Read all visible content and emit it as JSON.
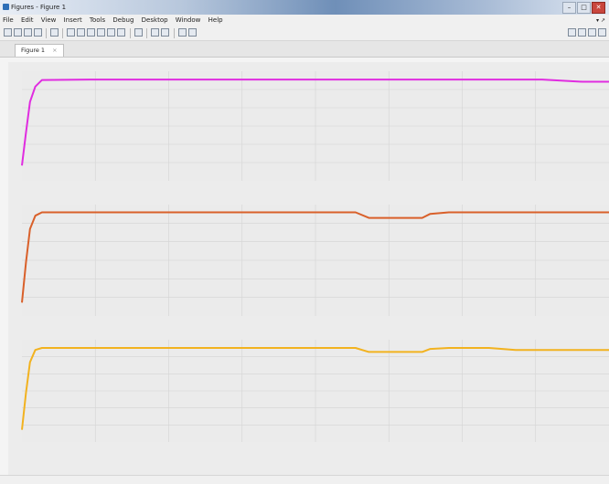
{
  "window": {
    "title": "Figures - Figure 1",
    "buttons": {
      "minimize": "–",
      "maximize": "□",
      "close": "✕"
    }
  },
  "menu": {
    "items": [
      "File",
      "Edit",
      "View",
      "Insert",
      "Tools",
      "Debug",
      "Desktop",
      "Window",
      "Help"
    ],
    "tail": "▾ ↗"
  },
  "toolbar": {
    "icons": [
      "new-figure-icon",
      "open-icon",
      "save-icon",
      "print-icon",
      "pointer-icon",
      "zoom-in-icon",
      "zoom-out-icon",
      "pan-icon",
      "rotate-icon",
      "data-cursor-icon",
      "brush-icon",
      "link-icon",
      "colorbar-icon",
      "legend-icon",
      "hide-plot-tools-icon",
      "show-plot-tools-icon"
    ],
    "layout_icons": [
      "tile-icon",
      "left-right-icon",
      "top-bottom-icon",
      "float-icon"
    ]
  },
  "tabs": [
    {
      "label": "Figure 1",
      "close": "×"
    }
  ],
  "colors": {
    "magenta": "#e02ce0",
    "orange": "#d9602a",
    "yellow": "#f2b21f"
  },
  "chart_data": [
    {
      "type": "line",
      "series": [
        {
          "color": "#e02ce0"
        }
      ],
      "x": [
        0,
        0.03,
        0.06,
        0.1,
        0.15,
        0.5,
        1,
        2,
        3,
        3.5,
        3.9,
        4.2,
        4.4
      ],
      "y": [
        0.7,
        2.2,
        3.6,
        4.3,
        4.6,
        4.62,
        4.62,
        4.62,
        4.62,
        4.62,
        4.62,
        4.52,
        4.52
      ],
      "xlim": [
        0,
        4.4
      ],
      "ylim": [
        0,
        5
      ],
      "grid": true
    },
    {
      "type": "line",
      "series": [
        {
          "color": "#d9602a"
        }
      ],
      "x": [
        0,
        0.03,
        0.06,
        0.1,
        0.15,
        0.5,
        1,
        2,
        2.5,
        2.6,
        3,
        3.06,
        3.2,
        4,
        4.4
      ],
      "y": [
        0.6,
        2.4,
        3.9,
        4.5,
        4.65,
        4.65,
        4.65,
        4.65,
        4.65,
        4.4,
        4.4,
        4.58,
        4.65,
        4.65,
        4.65
      ],
      "xlim": [
        0,
        4.4
      ],
      "ylim": [
        0,
        5
      ],
      "grid": true
    },
    {
      "type": "line",
      "series": [
        {
          "color": "#f2b21f"
        }
      ],
      "x": [
        0,
        0.03,
        0.06,
        0.1,
        0.15,
        0.5,
        1,
        2,
        2.5,
        2.6,
        3,
        3.06,
        3.2,
        3.5,
        3.7,
        4,
        4.4
      ],
      "y": [
        0.6,
        2.4,
        3.9,
        4.5,
        4.6,
        4.6,
        4.6,
        4.6,
        4.6,
        4.4,
        4.4,
        4.55,
        4.6,
        4.6,
        4.5,
        4.5,
        4.5
      ],
      "xlim": [
        0,
        4.4
      ],
      "ylim": [
        0,
        5
      ],
      "grid": true
    }
  ]
}
